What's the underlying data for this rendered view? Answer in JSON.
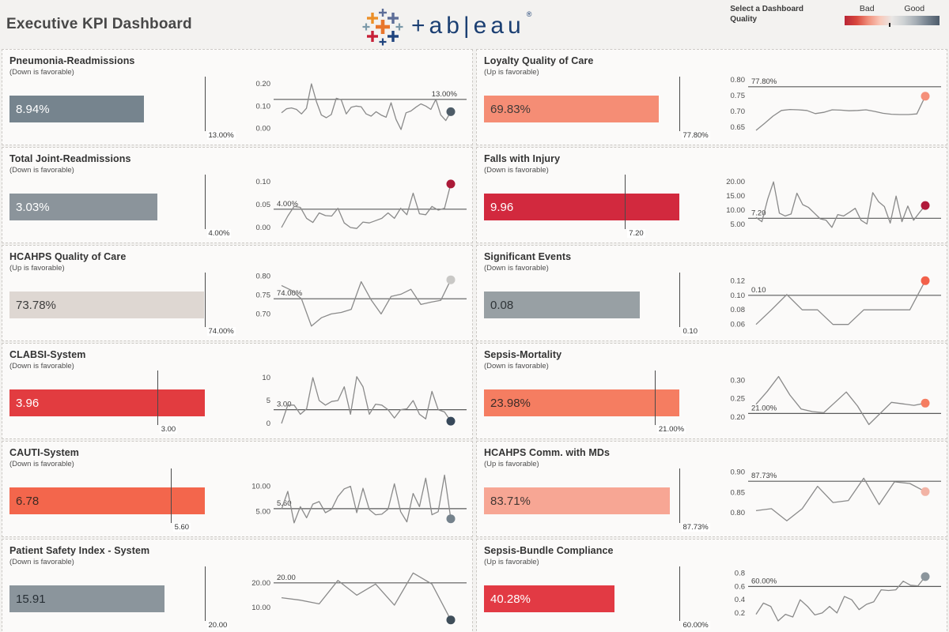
{
  "header": {
    "title": "Executive KPI Dashboard",
    "brand": {
      "wordmark": "+ab|eau",
      "registered": "®"
    },
    "quality_selector": {
      "line1": "Select a Dashboard",
      "line2": "Quality"
    },
    "legend": {
      "bad_label": "Bad",
      "good_label": "Good",
      "gradient": [
        "#b92636",
        "#d8473d",
        "#f0907c",
        "#f9c9ba",
        "#e9e7e5",
        "#cdd1d3",
        "#a6aeb5",
        "#75828e",
        "#4d5b6a"
      ]
    }
  },
  "chart_data": [
    {
      "type": "bullet+sparkline",
      "title": "Pneumonia-Readmissions",
      "subtitle": "(Down is favorable)",
      "bullet": {
        "value": 8.94,
        "value_label": "8.94%",
        "target": 13.0,
        "target_label": "13.00%",
        "bar_color": "#76848e",
        "text_color": "#ffffff"
      },
      "sparkline": {
        "ylim": [
          -0.03,
          0.225
        ],
        "yticks": [
          {
            "v": 0.2,
            "label": "0.20"
          },
          {
            "v": 0.1,
            "label": "0.10"
          },
          {
            "v": 0.0,
            "label": "0.00"
          }
        ],
        "ref": 0.13,
        "ref_label": "13.00%",
        "ref_label_side": "right",
        "dot_color": "#4e5c68",
        "points": [
          0.07,
          0.088,
          0.092,
          0.085,
          0.065,
          0.09,
          0.2,
          0.12,
          0.06,
          0.048,
          0.062,
          0.135,
          0.128,
          0.065,
          0.095,
          0.1,
          0.097,
          0.065,
          0.055,
          0.075,
          0.06,
          0.05,
          0.115,
          0.04,
          -0.005,
          0.07,
          0.078,
          0.095,
          0.11,
          0.1,
          0.085,
          0.13,
          0.06,
          0.035,
          0.075
        ]
      }
    },
    {
      "type": "bullet+sparkline",
      "title": "Loyalty Quality of Care",
      "subtitle": "(Up is favorable)",
      "bullet": {
        "value": 69.83,
        "value_label": "69.83%",
        "target": 77.8,
        "target_label": "77.80%",
        "bar_color": "#f58d75",
        "text_color": "#403a38"
      },
      "sparkline": {
        "ylim": [
          0.625,
          0.805
        ],
        "yticks": [
          {
            "v": 0.8,
            "label": "0.80"
          },
          {
            "v": 0.75,
            "label": "0.75"
          },
          {
            "v": 0.7,
            "label": "0.70"
          },
          {
            "v": 0.65,
            "label": "0.65"
          }
        ],
        "ref": 0.778,
        "ref_label": "77.80%",
        "ref_label_side": "left",
        "dot_color": "#f5907a",
        "points": [
          0.64,
          0.662,
          0.685,
          0.703,
          0.706,
          0.705,
          0.703,
          0.693,
          0.697,
          0.705,
          0.704,
          0.702,
          0.703,
          0.705,
          0.7,
          0.694,
          0.691,
          0.69,
          0.69,
          0.692,
          0.748
        ]
      }
    },
    {
      "type": "bullet+sparkline",
      "title": "Total Joint-Readmissions",
      "subtitle": "(Down is favorable)",
      "bullet": {
        "value": 3.03,
        "value_label": "3.03%",
        "target": 4.0,
        "target_label": "4.00%",
        "bar_color": "#8b949b",
        "text_color": "#ffffff"
      },
      "sparkline": {
        "ylim": [
          -0.012,
          0.112
        ],
        "yticks": [
          {
            "v": 0.1,
            "label": "0.10"
          },
          {
            "v": 0.05,
            "label": "0.05"
          },
          {
            "v": 0.0,
            "label": "0.00"
          }
        ],
        "ref": 0.04,
        "ref_label": "4.00%",
        "ref_label_side": "left",
        "dot_color": "#ab1a38",
        "points": [
          0.0,
          0.025,
          0.046,
          0.044,
          0.02,
          0.011,
          0.032,
          0.026,
          0.025,
          0.042,
          0.01,
          0.0,
          -0.002,
          0.012,
          0.01,
          0.015,
          0.02,
          0.032,
          0.02,
          0.042,
          0.028,
          0.075,
          0.03,
          0.028,
          0.046,
          0.038,
          0.042,
          0.095
        ]
      }
    },
    {
      "type": "bullet+sparkline",
      "title": "Falls with Injury",
      "subtitle": "(Down is favorable)",
      "bullet": {
        "value": 9.96,
        "value_label": "9.96",
        "target": 7.2,
        "target_label": "7.20",
        "bar_color": "#d2293e",
        "text_color": "#ffffff"
      },
      "sparkline": {
        "ylim": [
          2.0,
          22.0
        ],
        "yticks": [
          {
            "v": 20,
            "label": "20.00"
          },
          {
            "v": 15,
            "label": "15.00"
          },
          {
            "v": 10,
            "label": "10.00"
          },
          {
            "v": 5,
            "label": "5.00"
          }
        ],
        "ref": 7.2,
        "ref_label": "7.20",
        "ref_label_side": "left",
        "dot_color": "#b11a3b",
        "points": [
          7.5,
          6.0,
          14.0,
          20.0,
          9.0,
          8.0,
          8.7,
          16.0,
          12.0,
          11.0,
          9.0,
          7.0,
          6.5,
          4.0,
          8.5,
          8.0,
          9.3,
          10.7,
          6.5,
          5.2,
          16.2,
          13.0,
          11.3,
          5.5,
          15.0,
          6.0,
          11.5,
          6.5,
          9.2,
          11.7
        ]
      }
    },
    {
      "type": "bullet+sparkline",
      "title": "HCAHPS Quality of Care",
      "subtitle": "(Up is favorable)",
      "bullet": {
        "value": 73.78,
        "value_label": "73.78%",
        "target": 74.0,
        "target_label": "74.00%",
        "bar_color": "#ded7d2",
        "text_color": "#3d3d3d"
      },
      "sparkline": {
        "ylim": [
          0.655,
          0.805
        ],
        "yticks": [
          {
            "v": 0.8,
            "label": "0.80"
          },
          {
            "v": 0.75,
            "label": "0.75"
          },
          {
            "v": 0.7,
            "label": "0.70"
          }
        ],
        "ref": 0.74,
        "ref_label": "74.00%",
        "ref_label_side": "left",
        "dot_color": "#c9c8c6",
        "points": [
          0.775,
          0.762,
          0.74,
          0.668,
          0.69,
          0.7,
          0.704,
          0.712,
          0.785,
          0.737,
          0.7,
          0.746,
          0.752,
          0.765,
          0.725,
          0.731,
          0.736,
          0.79
        ]
      }
    },
    {
      "type": "bullet+sparkline",
      "title": "Significant Events",
      "subtitle": "(Down is favorable)",
      "bullet": {
        "value": 0.08,
        "value_label": "0.08",
        "target": 0.1,
        "target_label": "0.10",
        "bar_color": "#98a0a4",
        "text_color": "#2f3437"
      },
      "sparkline": {
        "ylim": [
          0.051,
          0.129
        ],
        "yticks": [
          {
            "v": 0.12,
            "label": "0.12"
          },
          {
            "v": 0.1,
            "label": "0.10"
          },
          {
            "v": 0.08,
            "label": "0.08"
          },
          {
            "v": 0.06,
            "label": "0.06"
          }
        ],
        "ref": 0.1,
        "ref_label": "0.10",
        "ref_label_side": "left",
        "dot_color": "#f2604a",
        "points": [
          0.06,
          0.08,
          0.101,
          0.08,
          0.08,
          0.06,
          0.06,
          0.08,
          0.08,
          0.08,
          0.08,
          0.12
        ]
      }
    },
    {
      "type": "bullet+sparkline",
      "title": "CLABSI-System",
      "subtitle": "(Down is favorable)",
      "bullet": {
        "value": 3.96,
        "value_label": "3.96",
        "target": 3.0,
        "target_label": "3.00",
        "bar_color": "#e23c40",
        "text_color": "#ffffff"
      },
      "sparkline": {
        "ylim": [
          -1.2,
          11.2
        ],
        "yticks": [
          {
            "v": 10,
            "label": "10"
          },
          {
            "v": 5,
            "label": "5"
          },
          {
            "v": 0,
            "label": "0"
          }
        ],
        "ref": 3.0,
        "ref_label": "3.00",
        "ref_label_side": "left",
        "dot_color": "#37485a",
        "points": [
          0,
          4,
          4,
          2,
          3.2,
          10,
          5,
          4,
          4.8,
          5,
          8,
          2,
          10.2,
          8,
          2,
          4.2,
          4,
          3,
          1.2,
          3,
          3.2,
          5,
          2,
          1,
          7,
          3,
          2.5,
          0.5
        ]
      }
    },
    {
      "type": "bullet+sparkline",
      "title": "Sepsis-Mortality",
      "subtitle": "(Down is favorable)",
      "bullet": {
        "value": 23.98,
        "value_label": "23.98%",
        "target": 21.0,
        "target_label": "21.00%",
        "bar_color": "#f57d61",
        "text_color": "#3d2d28"
      },
      "sparkline": {
        "ylim": [
          0.168,
          0.322
        ],
        "yticks": [
          {
            "v": 0.3,
            "label": "0.30"
          },
          {
            "v": 0.25,
            "label": "0.25"
          },
          {
            "v": 0.2,
            "label": "0.20"
          }
        ],
        "ref": 0.21,
        "ref_label": "21.00%",
        "ref_label_side": "left",
        "dot_color": "#f57d61",
        "points": [
          0.235,
          0.27,
          0.31,
          0.26,
          0.222,
          0.215,
          0.212,
          0.24,
          0.268,
          0.23,
          0.18,
          0.21,
          0.24,
          0.236,
          0.232,
          0.238
        ]
      }
    },
    {
      "type": "bullet+sparkline",
      "title": "CAUTI-System",
      "subtitle": "(Down is favorable)",
      "bullet": {
        "value": 6.78,
        "value_label": "6.78",
        "target": 5.6,
        "target_label": "5.60",
        "bar_color": "#f3664c",
        "text_color": "#3d2a24"
      },
      "sparkline": {
        "ylim": [
          2.0,
          13.2
        ],
        "yticks": [
          {
            "v": 10,
            "label": "10.00"
          },
          {
            "v": 5,
            "label": "5.00"
          }
        ],
        "ref": 5.6,
        "ref_label": "5.60",
        "ref_label_side": "left",
        "dot_color": "#75828c",
        "points": [
          5.5,
          9,
          2.8,
          6,
          3.8,
          6.5,
          7,
          4.8,
          5.5,
          8,
          9.5,
          10,
          4.8,
          9.6,
          5.4,
          4.4,
          4.5,
          5.5,
          10.5,
          5,
          3,
          8.6,
          6,
          11.6,
          4.4,
          5,
          12.2,
          3.6
        ]
      }
    },
    {
      "type": "bullet+sparkline",
      "title": "HCAHPS Comm. with MDs",
      "subtitle": "(Up is favorable)",
      "bullet": {
        "value": 83.71,
        "value_label": "83.71%",
        "target": 87.73,
        "target_label": "87.73%",
        "bar_color": "#f7a694",
        "text_color": "#433733"
      },
      "sparkline": {
        "ylim": [
          0.765,
          0.905
        ],
        "yticks": [
          {
            "v": 0.9,
            "label": "0.90"
          },
          {
            "v": 0.85,
            "label": "0.85"
          },
          {
            "v": 0.8,
            "label": "0.80"
          }
        ],
        "ref": 0.8773,
        "ref_label": "87.73%",
        "ref_label_side": "left",
        "dot_color": "#f2b3a5",
        "points": [
          0.805,
          0.81,
          0.78,
          0.81,
          0.865,
          0.825,
          0.83,
          0.885,
          0.82,
          0.876,
          0.872,
          0.852
        ]
      }
    },
    {
      "type": "bullet+sparkline",
      "title": "Patient Safety Index - System",
      "subtitle": "(Down is favorable)",
      "bullet": {
        "value": 15.91,
        "value_label": "15.91",
        "target": 20.0,
        "target_label": "20.00",
        "bar_color": "#8b959c",
        "text_color": "#272f35"
      },
      "sparkline": {
        "ylim": [
          3.0,
          26.0
        ],
        "yticks": [
          {
            "v": 20,
            "label": "20.00"
          },
          {
            "v": 10,
            "label": "10.00"
          }
        ],
        "ref": 20.0,
        "ref_label": "20.00",
        "ref_label_side": "left",
        "dot_color": "#3f4e5a",
        "points": [
          14,
          13,
          11.5,
          21,
          15,
          19.5,
          11,
          24,
          19.5,
          5
        ]
      }
    },
    {
      "type": "bullet+sparkline",
      "title": "Sepsis-Bundle Compliance",
      "subtitle": "(Up is favorable)",
      "bullet": {
        "value": 40.28,
        "value_label": "40.28%",
        "target": 60.0,
        "target_label": "60.00%",
        "bar_color": "#e23a44",
        "text_color": "#ffffff"
      },
      "sparkline": {
        "ylim": [
          0.02,
          0.88
        ],
        "yticks": [
          {
            "v": 0.8,
            "label": "0.8"
          },
          {
            "v": 0.6,
            "label": "0.6"
          },
          {
            "v": 0.4,
            "label": "0.4"
          },
          {
            "v": 0.2,
            "label": "0.2"
          }
        ],
        "ref": 0.6,
        "ref_label": "60.00%",
        "ref_label_side": "left",
        "dot_color": "#8b959c",
        "points": [
          0.18,
          0.35,
          0.3,
          0.08,
          0.18,
          0.14,
          0.4,
          0.3,
          0.17,
          0.2,
          0.3,
          0.2,
          0.45,
          0.4,
          0.25,
          0.33,
          0.37,
          0.55,
          0.54,
          0.55,
          0.68,
          0.62,
          0.61,
          0.75
        ]
      }
    }
  ]
}
